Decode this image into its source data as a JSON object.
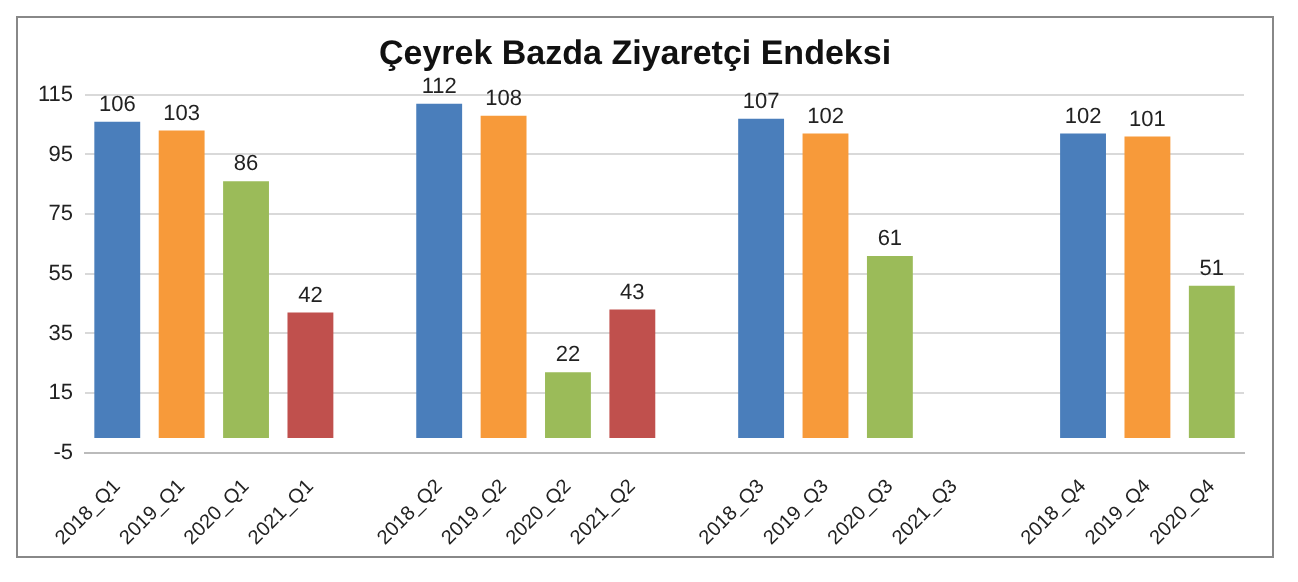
{
  "chart_data": {
    "type": "bar",
    "title": "Çeyrek Bazda Ziyaretçi Endeksi",
    "categories": [
      "2018_Q1",
      "2019_Q1",
      "2020_Q1",
      "2021_Q1",
      null,
      "2018_Q2",
      "2019_Q2",
      "2020_Q2",
      "2021_Q2",
      null,
      "2018_Q3",
      "2019_Q3",
      "2020_Q3",
      "2021_Q3",
      null,
      "2018_Q4",
      "2019_Q4",
      "2020_Q4"
    ],
    "values": [
      106,
      103,
      86,
      42,
      null,
      112,
      108,
      22,
      43,
      null,
      107,
      102,
      61,
      null,
      null,
      102,
      101,
      51
    ],
    "colors": [
      "#4a7ebb",
      "#f79a3a",
      "#9bbb59",
      "#c0504d",
      "#ffffff",
      "#4a7ebb",
      "#f79a3a",
      "#9bbb59",
      "#c0504d",
      "#ffffff",
      "#4a7ebb",
      "#f79a3a",
      "#9bbb59",
      "#c0504d",
      "#ffffff",
      "#4a7ebb",
      "#f79a3a",
      "#9bbb59"
    ],
    "ylim": [
      -5,
      115
    ],
    "yticks": [
      -5,
      15,
      35,
      55,
      75,
      95,
      115
    ],
    "grid": "y",
    "data_labels": true
  }
}
